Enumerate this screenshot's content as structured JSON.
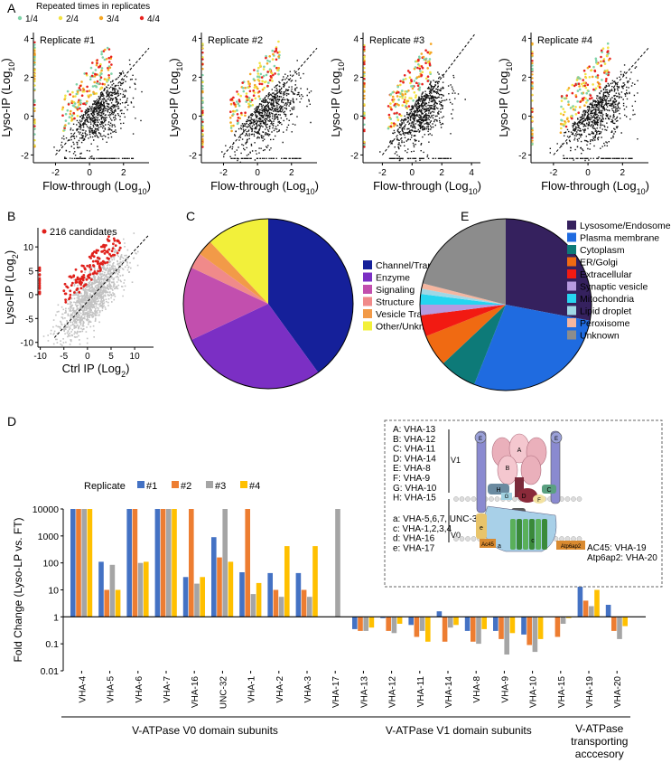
{
  "panel_labels": {
    "a": "A",
    "b": "B",
    "c": "C",
    "d": "D",
    "e": "E"
  },
  "colors": {
    "q1": "#7fd3a8",
    "q2": "#f2e241",
    "q3": "#f5a623",
    "q4": "#e8231f",
    "dot": "#111111",
    "grey_dot": "#c2c2c2",
    "red_dot": "#e0201b",
    "s1": "#4472c4",
    "s2": "#ed7d31",
    "s3": "#a5a5a5",
    "s4": "#ffc000"
  },
  "legendA": {
    "title": "Repeated times in replicates",
    "items": [
      {
        "label": "1/4",
        "color": "#7fd3a8"
      },
      {
        "label": "2/4",
        "color": "#f2e241"
      },
      {
        "label": "3/4",
        "color": "#f5a623"
      },
      {
        "label": "4/4",
        "color": "#e8231f"
      }
    ]
  },
  "scatterA": {
    "xlabel": "Flow-through (Log",
    "ylabel": "Lyso-IP (Log",
    "sub": "10",
    "close": ")",
    "plots": [
      {
        "title": "Replicate #1",
        "xticks": [
          "-2",
          "0",
          "2"
        ],
        "yticks": [
          "-2",
          "0",
          "2",
          "4"
        ]
      },
      {
        "title": "Replicate #2",
        "xticks": [
          "-2",
          "0",
          "2"
        ],
        "yticks": [
          "-2",
          "0",
          "2",
          "4"
        ]
      },
      {
        "title": "Replicate #3",
        "xticks": [
          "-2",
          "0",
          "2",
          "4"
        ],
        "yticks": [
          "-2",
          "0",
          "2",
          "4"
        ]
      },
      {
        "title": "Replicate #4",
        "xticks": [
          "-2",
          "0",
          "2"
        ],
        "yticks": [
          "-2",
          "0",
          "2",
          "4"
        ]
      }
    ]
  },
  "scatterB": {
    "legend": "216 candidates",
    "xlabel": "Ctrl IP (Log",
    "ylabel": "Lyso-IP (Log",
    "sub": "2",
    "close": ")",
    "xticks": [
      "-10",
      "-5",
      "0",
      "5",
      "10"
    ],
    "yticks": [
      "-10",
      "-5",
      "0",
      "5",
      "10"
    ]
  },
  "chart_data": [
    {
      "type": "pie",
      "id": "C",
      "title": "",
      "slices": [
        {
          "label": "Channel/Transporter",
          "value": 40,
          "color": "#15209a"
        },
        {
          "label": "Enzyme",
          "value": 28,
          "color": "#7b2fc4"
        },
        {
          "label": "Signaling",
          "value": 14,
          "color": "#c24fae"
        },
        {
          "label": "Structure",
          "value": 3,
          "color": "#f08a8a"
        },
        {
          "label": "Vesicle Trafficking",
          "value": 3,
          "color": "#f29a48"
        },
        {
          "label": "Other/Unknown",
          "value": 12,
          "color": "#f2f03a"
        }
      ]
    },
    {
      "type": "pie",
      "id": "E",
      "title": "",
      "slices": [
        {
          "label": "Lysosome/Endosome",
          "value": 28,
          "color": "#35215e"
        },
        {
          "label": "Plasma membrane",
          "value": 28,
          "color": "#1f6be0"
        },
        {
          "label": "Cytoplasm",
          "value": 7,
          "color": "#0d7a78"
        },
        {
          "label": "ER/Golgi",
          "value": 6,
          "color": "#f06a12"
        },
        {
          "label": "Extracellular",
          "value": 4,
          "color": "#f21a12"
        },
        {
          "label": "Synaptic vesicle",
          "value": 2,
          "color": "#b79ae0"
        },
        {
          "label": "Mitochondria",
          "value": 2,
          "color": "#26d5f0"
        },
        {
          "label": "Lipid droplet",
          "value": 1,
          "color": "#9fd8e6"
        },
        {
          "label": "Peroxisome",
          "value": 1,
          "color": "#f5b6a0"
        },
        {
          "label": "Unknown",
          "value": 21,
          "color": "#8c8c8c"
        }
      ]
    },
    {
      "type": "bar",
      "id": "D",
      "title": "",
      "ylabel": "Fold Change (Lyso-LP vs. FT)",
      "yscale": "log",
      "ylim": [
        0.01,
        10000
      ],
      "yticks": [
        "10000",
        "1000",
        "100",
        "10",
        "1",
        "0.1",
        "0.01"
      ],
      "legend_title": "Replicate",
      "categories": [
        "VHA-4",
        "VHA-5",
        "VHA-6",
        "VHA-7",
        "VHA-16",
        "UNC-32",
        "VHA-1",
        "VHA-2",
        "VHA-3",
        "VHA-17",
        "VHA-13",
        "VHA-12",
        "VHA-11",
        "VHA-14",
        "VHA-8",
        "VHA-9",
        "VHA-10",
        "VHA-15",
        "VHA-19",
        "VHA-20"
      ],
      "series": [
        {
          "name": "#1",
          "color": "#4472c4",
          "values": [
            10000,
            110,
            10000,
            10000,
            30,
            900,
            45,
            42,
            42,
            null,
            0.35,
            0.9,
            0.5,
            1.6,
            0.3,
            0.3,
            0.22,
            null,
            30,
            2.8
          ]
        },
        {
          "name": "#2",
          "color": "#ed7d31",
          "values": [
            10000,
            10,
            10000,
            10000,
            10000,
            160,
            10000,
            10,
            10,
            null,
            0.3,
            0.3,
            0.18,
            0.12,
            0.12,
            0.15,
            0.09,
            0.18,
            4,
            0.3
          ]
        },
        {
          "name": "#3",
          "color": "#a5a5a5",
          "values": [
            10000,
            85,
            100,
            10000,
            17,
            10000,
            7,
            5.5,
            5.5,
            10000,
            0.3,
            0.25,
            0.3,
            0.4,
            0.1,
            0.04,
            0.05,
            0.55,
            2.5,
            0.15
          ]
        },
        {
          "name": "#4",
          "color": "#ffc000",
          "values": [
            10000,
            10,
            110,
            10000,
            30,
            110,
            18,
            420,
            420,
            null,
            0.4,
            0.55,
            0.12,
            0.5,
            0.35,
            0.25,
            0.15,
            0.9,
            10,
            0.45
          ]
        }
      ],
      "groups": [
        {
          "label": "V-ATPase V0 domain subunits",
          "from": 0,
          "to": 9
        },
        {
          "label": "V-ATPase V1 domain subunits",
          "from": 10,
          "to": 17
        },
        {
          "label": "V-ATPase transporting acccesory",
          "from": 18,
          "to": 19
        }
      ]
    }
  ],
  "inset": {
    "v1_list": [
      "A: VHA-13",
      "B: VHA-12",
      "C: VHA-11",
      "D: VHA-14",
      "E: VHA-8",
      "F: VHA-9",
      "G: VHA-10",
      "H: VHA-15"
    ],
    "v0_list": [
      "a: VHA-5,6,7, UNC-32",
      "c: VHA-1,2,3,4",
      "d: VHA-16",
      "e: VHA-17"
    ],
    "right_list": [
      "AC45: VHA-19",
      "Atp6ap2: VHA-20"
    ],
    "v1_tag": "V1",
    "v0_tag": "V0",
    "letters": {
      "A": "A",
      "B": "B",
      "C": "C",
      "D": "D",
      "E": "E",
      "F": "F",
      "G": "G",
      "H": "H",
      "a": "a",
      "c": "c",
      "d": "d",
      "e": "e"
    },
    "ac45": "Ac45",
    "atp": "Atp6ap2"
  }
}
